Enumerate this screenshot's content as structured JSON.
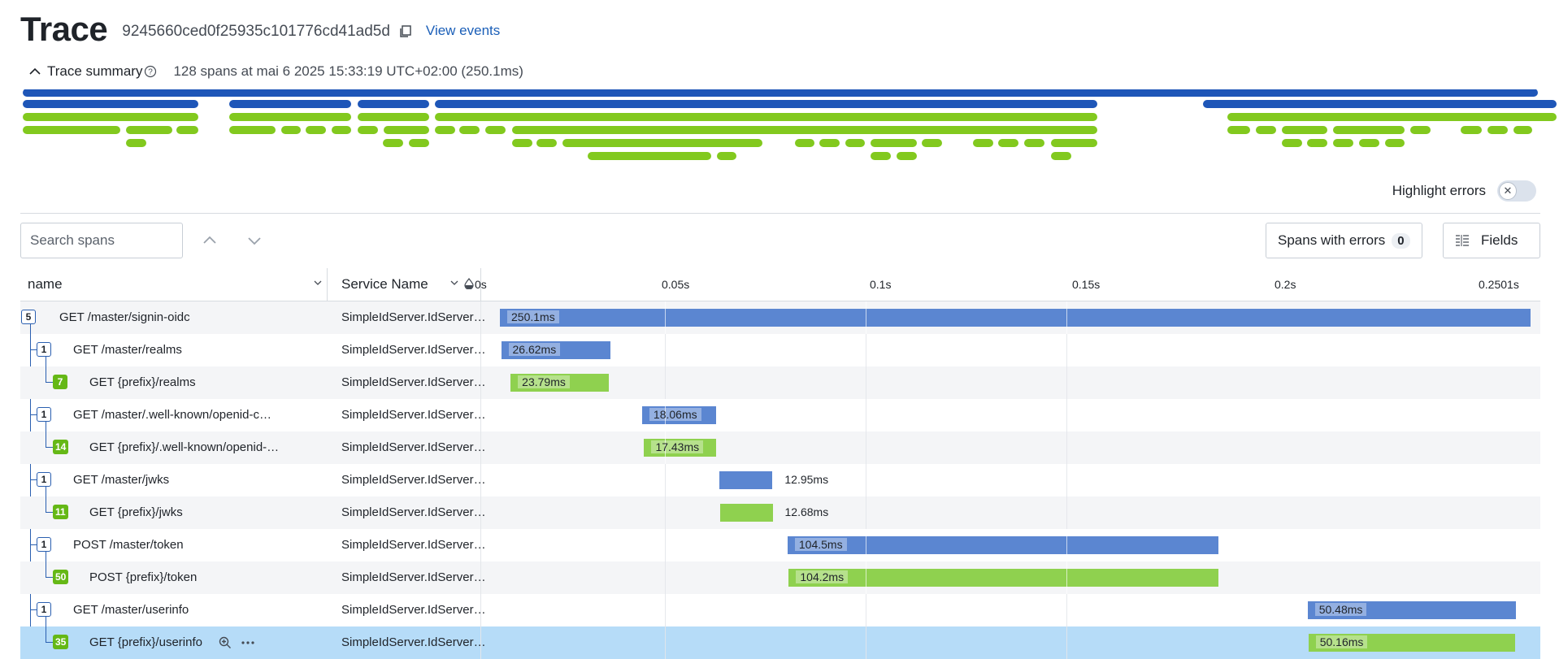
{
  "header": {
    "title": "Trace",
    "trace_id": "9245660ced0f25935c101776cd41ad5d",
    "view_events": "View events"
  },
  "summary": {
    "toggle_label": "Trace summary",
    "info": "128 spans at mai 6 2025 15:33:19 UTC+02:00 (250.1ms)"
  },
  "highlight": {
    "label": "Highlight errors",
    "enabled": false
  },
  "search": {
    "placeholder": "Search spans"
  },
  "buttons": {
    "spans_with_errors": "Spans with errors",
    "error_count": "0",
    "fields": "Fields"
  },
  "table": {
    "col_name": "name",
    "col_service": "Service Name",
    "ticks": [
      "0s",
      "0.05s",
      "0.1s",
      "0.15s",
      "0.2s",
      "0.2501s"
    ],
    "total_ms": 250.1
  },
  "colors": {
    "blue": "#5b86d1",
    "green": "#8fd14f",
    "minimap_blue": "#1e56b8",
    "minimap_green": "#82c91e",
    "selected": "#b6dcf8"
  },
  "rows": [
    {
      "name": "GET /master/signin-oidc",
      "service": "SimpleIdServer.IdServer…",
      "count": "5",
      "count_style": "outline",
      "depth": 0,
      "start_ms": 0,
      "duration_ms": 250.1,
      "label": "250.1ms",
      "color": "blue",
      "selected": false
    },
    {
      "name": "GET /master/realms",
      "service": "SimpleIdServer.IdServer…",
      "count": "1",
      "count_style": "outline",
      "depth": 1,
      "start_ms": 0.3,
      "duration_ms": 26.62,
      "label": "26.62ms",
      "color": "blue",
      "selected": false
    },
    {
      "name": "GET {prefix}/realms",
      "service": "SimpleIdServer.IdServer…",
      "count": "7",
      "count_style": "green",
      "depth": 2,
      "start_ms": 2.6,
      "duration_ms": 23.79,
      "label": "23.79ms",
      "color": "green",
      "selected": false
    },
    {
      "name": "GET /master/.well-known/openid-c…",
      "service": "SimpleIdServer.IdServer…",
      "count": "1",
      "count_style": "outline",
      "depth": 1,
      "start_ms": 34.5,
      "duration_ms": 18.06,
      "label": "18.06ms",
      "color": "blue",
      "selected": false
    },
    {
      "name": "GET {prefix}/.well-known/openid-…",
      "service": "SimpleIdServer.IdServer…",
      "count": "14",
      "count_style": "green",
      "depth": 2,
      "start_ms": 35.0,
      "duration_ms": 17.43,
      "label": "17.43ms",
      "color": "green",
      "selected": false
    },
    {
      "name": "GET /master/jwks",
      "service": "SimpleIdServer.IdServer…",
      "count": "1",
      "count_style": "outline",
      "depth": 1,
      "start_ms": 53.2,
      "duration_ms": 12.95,
      "label": "12.95ms",
      "color": "blue",
      "selected": false
    },
    {
      "name": "GET {prefix}/jwks",
      "service": "SimpleIdServer.IdServer…",
      "count": "11",
      "count_style": "green",
      "depth": 2,
      "start_ms": 53.5,
      "duration_ms": 12.68,
      "label": "12.68ms",
      "color": "green",
      "selected": false
    },
    {
      "name": "POST /master/token",
      "service": "SimpleIdServer.IdServer…",
      "count": "1",
      "count_style": "outline",
      "depth": 1,
      "start_ms": 69.8,
      "duration_ms": 104.5,
      "label": "104.5ms",
      "color": "blue",
      "selected": false
    },
    {
      "name": "POST {prefix}/token",
      "service": "SimpleIdServer.IdServer…",
      "count": "50",
      "count_style": "green",
      "depth": 2,
      "start_ms": 70.1,
      "duration_ms": 104.2,
      "label": "104.2ms",
      "color": "green",
      "selected": false
    },
    {
      "name": "GET /master/userinfo",
      "service": "SimpleIdServer.IdServer…",
      "count": "1",
      "count_style": "outline",
      "depth": 1,
      "start_ms": 196.0,
      "duration_ms": 50.48,
      "label": "50.48ms",
      "color": "blue",
      "selected": false
    },
    {
      "name": "GET {prefix}/userinfo",
      "service": "SimpleIdServer.IdServer…",
      "count": "35",
      "count_style": "green",
      "depth": 2,
      "start_ms": 196.2,
      "duration_ms": 50.16,
      "label": "50.16ms",
      "color": "green",
      "selected": true
    }
  ]
}
